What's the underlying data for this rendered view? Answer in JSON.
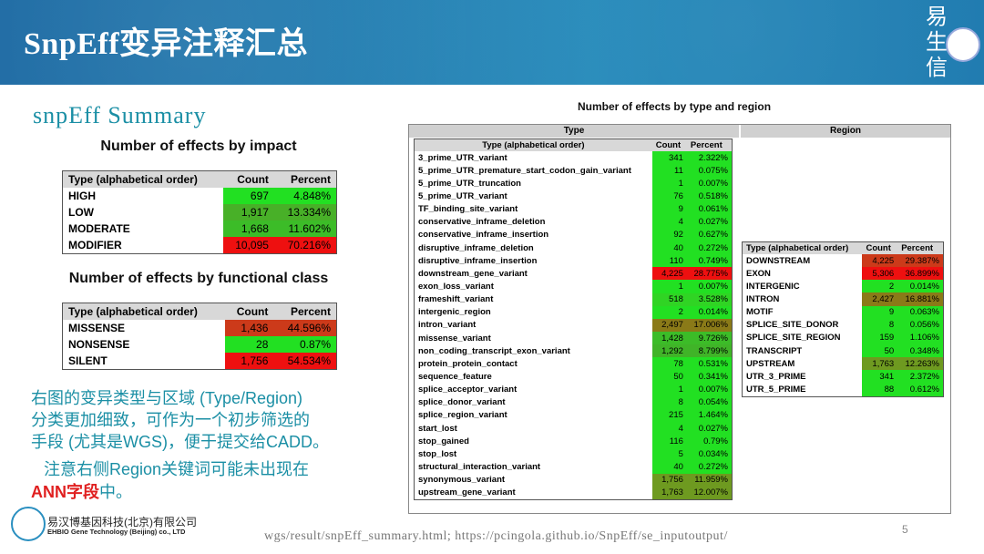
{
  "header": {
    "title": "SnpEff变异注释汇总",
    "logo_chars": [
      "易",
      "生",
      "信"
    ]
  },
  "subtitle": "snpEff Summary",
  "impact": {
    "title": "Number of effects by impact",
    "headers": [
      "Type (alphabetical order)",
      "Count",
      "Percent"
    ],
    "rows": [
      {
        "type": "HIGH",
        "count": "697",
        "percent": "4.848%",
        "color": "#22e022"
      },
      {
        "type": "LOW",
        "count": "1,917",
        "percent": "13.334%",
        "color": "#48b028"
      },
      {
        "type": "MODERATE",
        "count": "1,668",
        "percent": "11.602%",
        "color": "#3cbc28"
      },
      {
        "type": "MODIFIER",
        "count": "10,095",
        "percent": "70.216%",
        "color": "#ee1010"
      }
    ]
  },
  "functional": {
    "title": "Number of effects by functional class",
    "headers": [
      "Type (alphabetical order)",
      "Count",
      "Percent"
    ],
    "rows": [
      {
        "type": "MISSENSE",
        "count": "1,436",
        "percent": "44.596%",
        "color": "#cc3a1a"
      },
      {
        "type": "NONSENSE",
        "count": "28",
        "percent": "0.87%",
        "color": "#22e022"
      },
      {
        "type": "SILENT",
        "count": "1,756",
        "percent": "54.534%",
        "color": "#ee1010"
      }
    ]
  },
  "notes": {
    "line1": "右图的变异类型与区域 (Type/Region)",
    "line2": "分类更加细致，可作为一个初步筛选的",
    "line3": "手段 (尤其是WGS)，便于提交给CADD。",
    "line4": "注意右侧Region关键词可能未出现在",
    "line5_red": "ANN字段",
    "line5_rest": "中。"
  },
  "right": {
    "title": "Number of effects by type and region",
    "type_header": "Type",
    "region_header": "Region",
    "type_table": {
      "headers": [
        "Type (alphabetical order)",
        "Count",
        "Percent"
      ],
      "rows": [
        {
          "type": "3_prime_UTR_variant",
          "count": "341",
          "percent": "2.322%",
          "color": "#22e022"
        },
        {
          "type": "5_prime_UTR_premature_start_codon_gain_variant",
          "count": "11",
          "percent": "0.075%",
          "color": "#22e022"
        },
        {
          "type": "5_prime_UTR_truncation",
          "count": "1",
          "percent": "0.007%",
          "color": "#22e022"
        },
        {
          "type": "5_prime_UTR_variant",
          "count": "76",
          "percent": "0.518%",
          "color": "#22e022"
        },
        {
          "type": "TF_binding_site_variant",
          "count": "9",
          "percent": "0.061%",
          "color": "#22e022"
        },
        {
          "type": "conservative_inframe_deletion",
          "count": "4",
          "percent": "0.027%",
          "color": "#22e022"
        },
        {
          "type": "conservative_inframe_insertion",
          "count": "92",
          "percent": "0.627%",
          "color": "#22e022"
        },
        {
          "type": "disruptive_inframe_deletion",
          "count": "40",
          "percent": "0.272%",
          "color": "#22e022"
        },
        {
          "type": "disruptive_inframe_insertion",
          "count": "110",
          "percent": "0.749%",
          "color": "#22e022"
        },
        {
          "type": "downstream_gene_variant",
          "count": "4,225",
          "percent": "28.775%",
          "color": "#ee1010"
        },
        {
          "type": "exon_loss_variant",
          "count": "1",
          "percent": "0.007%",
          "color": "#22e022"
        },
        {
          "type": "frameshift_variant",
          "count": "518",
          "percent": "3.528%",
          "color": "#30d424"
        },
        {
          "type": "intergenic_region",
          "count": "2",
          "percent": "0.014%",
          "color": "#22e022"
        },
        {
          "type": "intron_variant",
          "count": "2,497",
          "percent": "17.006%",
          "color": "#8a7a18"
        },
        {
          "type": "missense_variant",
          "count": "1,428",
          "percent": "9.726%",
          "color": "#3cbc28"
        },
        {
          "type": "non_coding_transcript_exon_variant",
          "count": "1,292",
          "percent": "8.799%",
          "color": "#40b428"
        },
        {
          "type": "protein_protein_contact",
          "count": "78",
          "percent": "0.531%",
          "color": "#22e022"
        },
        {
          "type": "sequence_feature",
          "count": "50",
          "percent": "0.341%",
          "color": "#22e022"
        },
        {
          "type": "splice_acceptor_variant",
          "count": "1",
          "percent": "0.007%",
          "color": "#22e022"
        },
        {
          "type": "splice_donor_variant",
          "count": "8",
          "percent": "0.054%",
          "color": "#22e022"
        },
        {
          "type": "splice_region_variant",
          "count": "215",
          "percent": "1.464%",
          "color": "#22e022"
        },
        {
          "type": "start_lost",
          "count": "4",
          "percent": "0.027%",
          "color": "#22e022"
        },
        {
          "type": "stop_gained",
          "count": "116",
          "percent": "0.79%",
          "color": "#22e022"
        },
        {
          "type": "stop_lost",
          "count": "5",
          "percent": "0.034%",
          "color": "#22e022"
        },
        {
          "type": "structural_interaction_variant",
          "count": "40",
          "percent": "0.272%",
          "color": "#22e022"
        },
        {
          "type": "synonymous_variant",
          "count": "1,756",
          "percent": "11.959%",
          "color": "#6e9a20"
        },
        {
          "type": "upstream_gene_variant",
          "count": "1,763",
          "percent": "12.007%",
          "color": "#6e9a20"
        }
      ]
    },
    "region_table": {
      "headers": [
        "Type (alphabetical order)",
        "Count",
        "Percent"
      ],
      "rows": [
        {
          "type": "DOWNSTREAM",
          "count": "4,225",
          "percent": "29.387%",
          "color": "#cc3a1a"
        },
        {
          "type": "EXON",
          "count": "5,306",
          "percent": "36.899%",
          "color": "#ee1010"
        },
        {
          "type": "INTERGENIC",
          "count": "2",
          "percent": "0.014%",
          "color": "#22e022"
        },
        {
          "type": "INTRON",
          "count": "2,427",
          "percent": "16.881%",
          "color": "#8a7a18"
        },
        {
          "type": "MOTIF",
          "count": "9",
          "percent": "0.063%",
          "color": "#22e022"
        },
        {
          "type": "SPLICE_SITE_DONOR",
          "count": "8",
          "percent": "0.056%",
          "color": "#22e022"
        },
        {
          "type": "SPLICE_SITE_REGION",
          "count": "159",
          "percent": "1.106%",
          "color": "#22e022"
        },
        {
          "type": "TRANSCRIPT",
          "count": "50",
          "percent": "0.348%",
          "color": "#22e022"
        },
        {
          "type": "UPSTREAM",
          "count": "1,763",
          "percent": "12.263%",
          "color": "#6e9a20"
        },
        {
          "type": "UTR_3_PRIME",
          "count": "341",
          "percent": "2.372%",
          "color": "#22e022"
        },
        {
          "type": "UTR_5_PRIME",
          "count": "88",
          "percent": "0.612%",
          "color": "#22e022"
        }
      ]
    }
  },
  "footer": {
    "company_cn": "易汉博基因科技(北京)有限公司",
    "company_en": "EHBIO Gene Technology (Beijing) co., LTD",
    "url": "wgs/result/snpEff_summary.html; https://pcingola.github.io/SnpEff/se_inputoutput/",
    "page": "5"
  }
}
